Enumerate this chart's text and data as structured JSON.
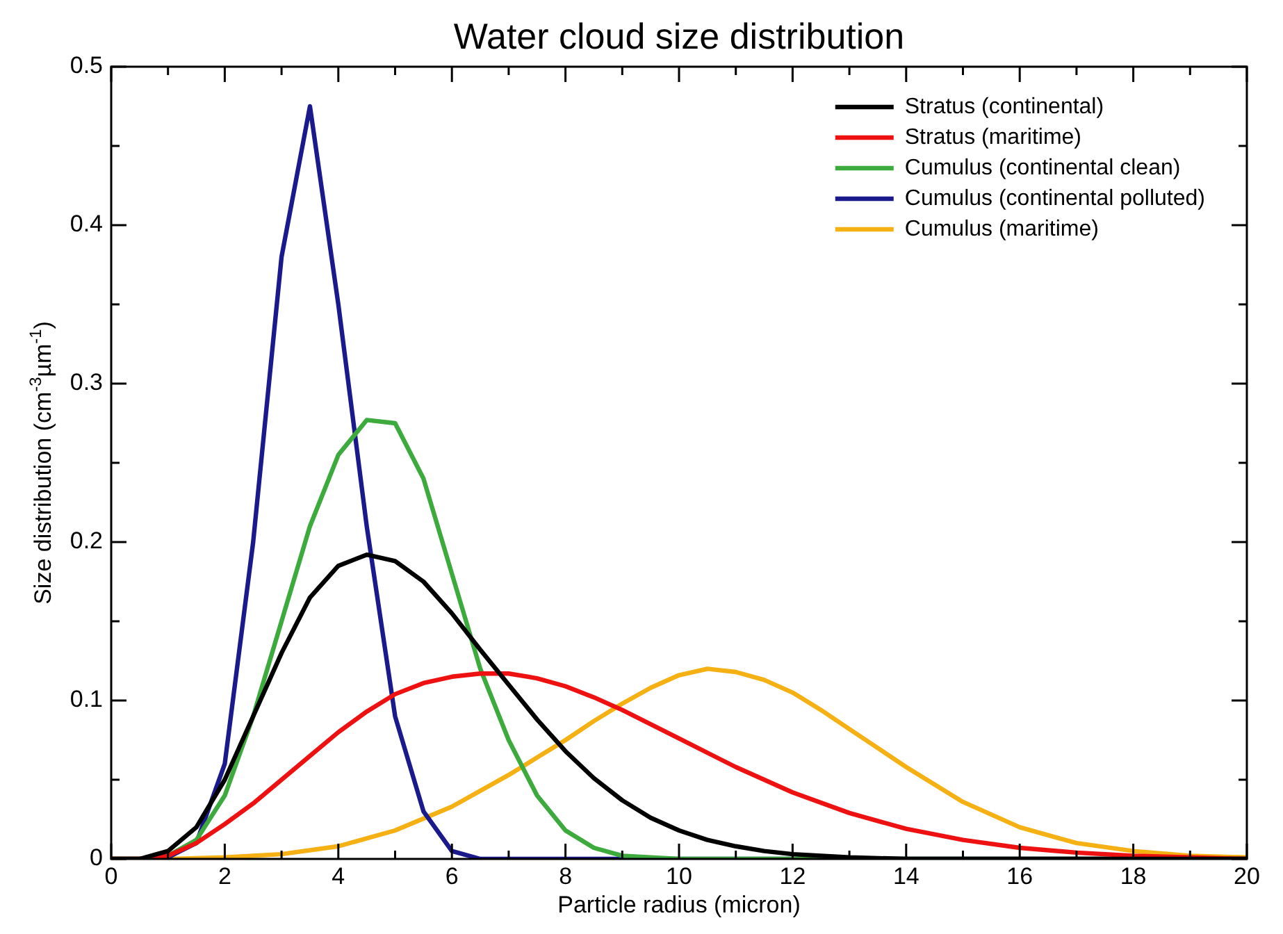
{
  "chart_data": {
    "type": "line",
    "title": "Water cloud size distribution",
    "xlabel": "Particle radius (micron)",
    "ylabel": "Size distribution (cm$^{-3}$µm$^{-1}$)",
    "xlim": [
      0,
      20
    ],
    "ylim": [
      0,
      0.5
    ],
    "xticks": [
      0,
      {
        "value": 1,
        "label": null
      },
      2,
      {
        "value": 3,
        "label": null
      },
      4,
      {
        "value": 5,
        "label": null
      },
      6,
      {
        "value": 7,
        "label": null
      },
      8,
      {
        "value": 9,
        "label": null
      },
      10,
      {
        "value": 11,
        "label": null
      },
      12,
      {
        "value": 13,
        "label": null
      },
      14,
      {
        "value": 15,
        "label": null
      },
      16,
      {
        "value": 17,
        "label": null
      },
      18,
      {
        "value": 19,
        "label": null
      },
      20
    ],
    "yticks": [
      0,
      {
        "value": 0.05,
        "label": null
      },
      0.1,
      {
        "value": 0.15,
        "label": null
      },
      0.2,
      {
        "value": 0.25,
        "label": null
      },
      0.3,
      {
        "value": 0.35,
        "label": null
      },
      0.4,
      {
        "value": 0.45,
        "label": null
      },
      0.5
    ],
    "grid": false,
    "legend": "top right",
    "marker": "none",
    "line_style": "solid",
    "series": [
      {
        "name": "Stratus (continental)",
        "color": "#000000",
        "x": [
          0,
          0.5,
          1,
          1.5,
          2,
          2.5,
          3,
          3.5,
          4,
          4.5,
          5,
          5.5,
          6,
          6.5,
          7,
          7.5,
          8,
          8.5,
          9,
          9.5,
          10,
          10.5,
          11,
          11.5,
          12,
          13,
          14,
          20
        ],
        "values": [
          0,
          0,
          0.005,
          0.02,
          0.05,
          0.09,
          0.13,
          0.165,
          0.185,
          0.192,
          0.188,
          0.175,
          0.155,
          0.132,
          0.11,
          0.088,
          0.068,
          0.051,
          0.037,
          0.026,
          0.018,
          0.012,
          0.008,
          0.005,
          0.003,
          0.001,
          0,
          0
        ]
      },
      {
        "name": "Stratus (maritime)",
        "color": "#ee1111",
        "x": [
          0,
          0.5,
          1,
          1.5,
          2,
          2.5,
          3,
          3.5,
          4,
          4.5,
          5,
          5.5,
          6,
          6.5,
          7,
          7.5,
          8,
          8.5,
          9,
          9.5,
          10,
          10.5,
          11,
          12,
          13,
          14,
          15,
          16,
          17,
          18,
          19,
          20
        ],
        "values": [
          0,
          0,
          0.002,
          0.01,
          0.022,
          0.035,
          0.05,
          0.065,
          0.08,
          0.093,
          0.104,
          0.111,
          0.115,
          0.117,
          0.117,
          0.114,
          0.109,
          0.102,
          0.094,
          0.085,
          0.076,
          0.067,
          0.058,
          0.042,
          0.029,
          0.019,
          0.012,
          0.007,
          0.004,
          0.002,
          0.001,
          0
        ]
      },
      {
        "name": "Cumulus (continental clean)",
        "color": "#3daa3d",
        "x": [
          0,
          0.5,
          1,
          1.5,
          2,
          2.5,
          3,
          3.5,
          4,
          4.5,
          5,
          5.5,
          6,
          6.5,
          7,
          7.5,
          8,
          8.5,
          9,
          9.5,
          10,
          20
        ],
        "values": [
          0,
          0,
          0.002,
          0.012,
          0.04,
          0.09,
          0.15,
          0.21,
          0.255,
          0.277,
          0.275,
          0.24,
          0.18,
          0.12,
          0.075,
          0.04,
          0.018,
          0.007,
          0.002,
          0.001,
          0,
          0
        ]
      },
      {
        "name": "Cumulus (continental polluted)",
        "color": "#1a1a8c",
        "x": [
          0,
          0.5,
          1,
          1.5,
          2,
          2.5,
          3,
          3.5,
          4,
          4.5,
          5,
          5.5,
          6,
          6.5,
          20
        ],
        "values": [
          0,
          0,
          0.001,
          0.01,
          0.06,
          0.2,
          0.38,
          0.475,
          0.35,
          0.21,
          0.09,
          0.03,
          0.005,
          0,
          0
        ]
      },
      {
        "name": "Cumulus (maritime)",
        "color": "#f5b014",
        "x": [
          0,
          1,
          2,
          3,
          4,
          5,
          6,
          7,
          7.5,
          8,
          8.5,
          9,
          9.5,
          10,
          10.5,
          11,
          11.5,
          12,
          12.5,
          13,
          13.5,
          14,
          15,
          16,
          17,
          18,
          19,
          20
        ],
        "values": [
          0,
          0,
          0.001,
          0.003,
          0.008,
          0.018,
          0.033,
          0.053,
          0.064,
          0.075,
          0.087,
          0.098,
          0.108,
          0.116,
          0.12,
          0.118,
          0.113,
          0.105,
          0.094,
          0.082,
          0.07,
          0.058,
          0.036,
          0.02,
          0.01,
          0.005,
          0.002,
          0.001
        ]
      }
    ]
  }
}
